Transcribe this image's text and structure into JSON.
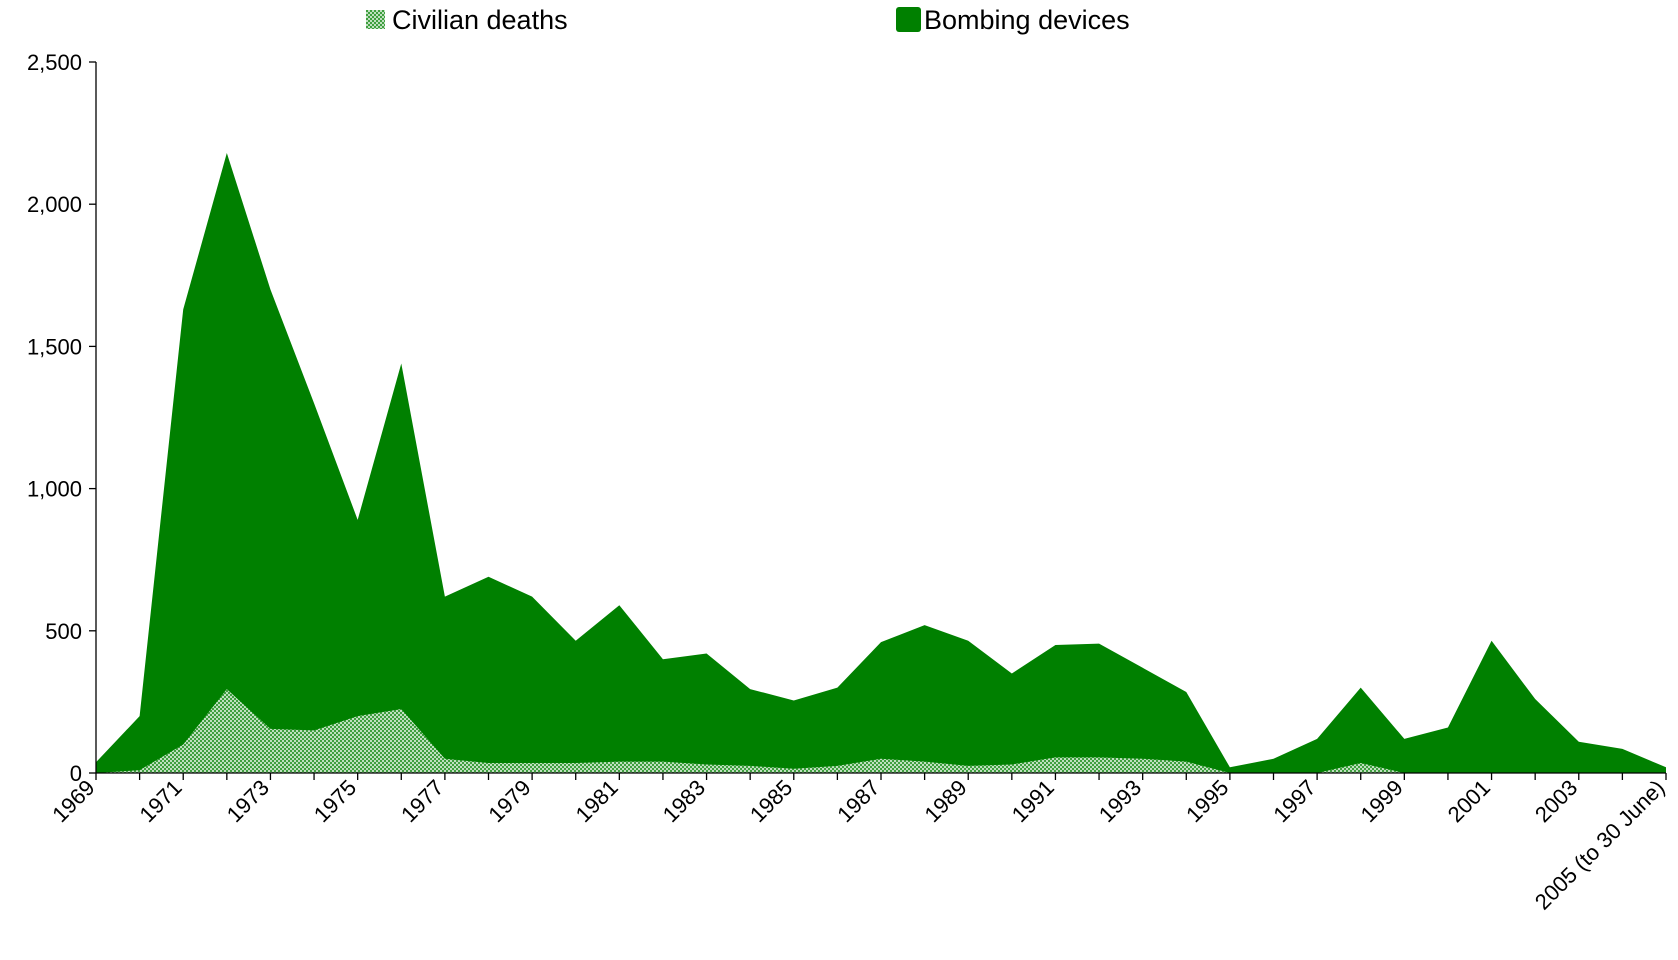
{
  "chart_data": {
    "type": "area",
    "x": [
      "1969",
      "1970",
      "1971",
      "1972",
      "1973",
      "1974",
      "1975",
      "1976",
      "1977",
      "1978",
      "1979",
      "1980",
      "1981",
      "1982",
      "1983",
      "1984",
      "1985",
      "1986",
      "1987",
      "1988",
      "1989",
      "1990",
      "1991",
      "1992",
      "1993",
      "1994",
      "1995",
      "1996",
      "1997",
      "1998",
      "1999",
      "2000",
      "2001",
      "2002",
      "2003",
      "2004",
      "2005 (to 30 June)"
    ],
    "x_tick_labels": [
      "1969",
      "1971",
      "1973",
      "1975",
      "1977",
      "1979",
      "1981",
      "1983",
      "1985",
      "1987",
      "1989",
      "1991",
      "1993",
      "1995",
      "1997",
      "1999",
      "2001",
      "2003",
      "2005 (to 30 June)"
    ],
    "series": [
      {
        "name": "Bombing devices",
        "color": "#008000",
        "pattern": "solid",
        "values": [
          38,
          200,
          1630,
          2180,
          1700,
          1300,
          890,
          1440,
          620,
          690,
          620,
          465,
          590,
          400,
          420,
          295,
          255,
          300,
          460,
          520,
          465,
          350,
          450,
          455,
          370,
          285,
          20,
          50,
          120,
          300,
          120,
          160,
          465,
          260,
          110,
          85,
          20
        ]
      },
      {
        "name": "Civilian deaths",
        "color": "#78b878",
        "pattern": "hatched",
        "values": [
          0,
          10,
          100,
          295,
          155,
          150,
          200,
          225,
          50,
          35,
          35,
          35,
          40,
          40,
          30,
          25,
          15,
          25,
          50,
          40,
          25,
          30,
          55,
          55,
          50,
          40,
          0,
          0,
          0,
          35,
          0,
          0,
          0,
          0,
          0,
          0,
          0
        ]
      }
    ],
    "legend": [
      {
        "label": "Civilian deaths",
        "icon": "hatched-swatch-icon"
      },
      {
        "label": "Bombing devices",
        "icon": "solid-swatch-icon"
      }
    ],
    "legend_position": "top",
    "y_ticks": [
      0,
      500,
      1000,
      1500,
      2000,
      2500
    ],
    "y_tick_labels": [
      "0",
      "500",
      "1,000",
      "1,500",
      "2,000",
      "2,500"
    ],
    "ylim": [
      0,
      2500
    ],
    "grid": false,
    "title": "",
    "xlabel": "",
    "ylabel": ""
  }
}
